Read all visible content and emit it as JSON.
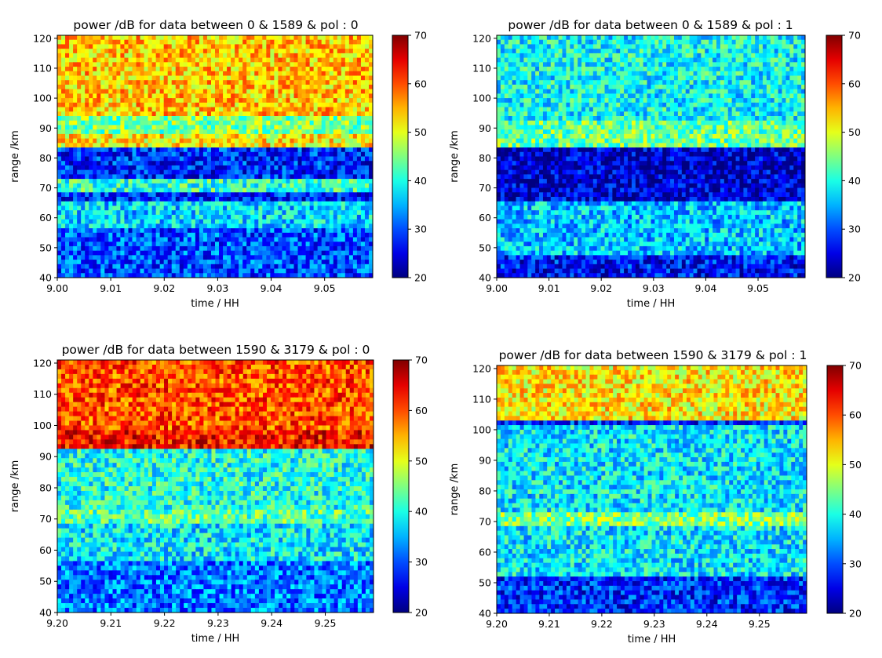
{
  "chart_data": [
    {
      "type": "heatmap",
      "title": "power /dB for data between 0 & 1589 & pol : 0",
      "xlabel": "time / HH",
      "ylabel": "range /km",
      "xlim": [
        9.0,
        9.059
      ],
      "ylim": [
        40,
        121
      ],
      "x_ticks": [
        "9.00",
        "9.01",
        "9.02",
        "9.03",
        "9.04",
        "9.05"
      ],
      "y_ticks": [
        "40",
        "50",
        "60",
        "70",
        "80",
        "90",
        "100",
        "110",
        "120"
      ],
      "colorbar": {
        "min": 20,
        "max": 70,
        "ticks": [
          "20",
          "30",
          "40",
          "50",
          "60",
          "70"
        ],
        "colormap": "jet"
      },
      "bands": [
        {
          "range_km": [
            40,
            56
          ],
          "level_db": 30
        },
        {
          "range_km": [
            56,
            66
          ],
          "level_db": 37
        },
        {
          "range_km": [
            69,
            73
          ],
          "level_db": 41
        },
        {
          "range_km": [
            74,
            82
          ],
          "level_db": 28
        },
        {
          "range_km": [
            83,
            88
          ],
          "level_db": 52
        },
        {
          "range_km": [
            88,
            94
          ],
          "level_db": 45
        },
        {
          "range_km": [
            94,
            121
          ],
          "level_db": 54
        }
      ]
    },
    {
      "type": "heatmap",
      "title": "power /dB for data between 0 & 1589 & pol : 1",
      "xlabel": "time / HH",
      "ylabel": "range /km",
      "xlim": [
        9.0,
        9.059
      ],
      "ylim": [
        40,
        121
      ],
      "x_ticks": [
        "9.00",
        "9.01",
        "9.02",
        "9.03",
        "9.04",
        "9.05"
      ],
      "y_ticks": [
        "40",
        "50",
        "60",
        "70",
        "80",
        "90",
        "100",
        "110",
        "120"
      ],
      "colorbar": {
        "min": 20,
        "max": 70,
        "ticks": [
          "20",
          "30",
          "40",
          "50",
          "60",
          "70"
        ],
        "colormap": "jet"
      },
      "bands": [
        {
          "range_km": [
            40,
            47
          ],
          "level_db": 27
        },
        {
          "range_km": [
            47,
            65
          ],
          "level_db": 36
        },
        {
          "range_km": [
            65,
            83
          ],
          "level_db": 24
        },
        {
          "range_km": [
            84,
            92
          ],
          "level_db": 44
        },
        {
          "range_km": [
            92,
            121
          ],
          "level_db": 39
        }
      ]
    },
    {
      "type": "heatmap",
      "title": "power /dB for data between 1590 & 3179 & pol : 0",
      "xlabel": "time / HH",
      "ylabel": "range /km",
      "xlim": [
        9.2,
        9.259
      ],
      "ylim": [
        40,
        121
      ],
      "x_ticks": [
        "9.20",
        "9.21",
        "9.22",
        "9.23",
        "9.24",
        "9.25"
      ],
      "y_ticks": [
        "40",
        "50",
        "60",
        "70",
        "80",
        "90",
        "100",
        "110",
        "120"
      ],
      "colorbar": {
        "min": 20,
        "max": 70,
        "ticks": [
          "20",
          "30",
          "40",
          "50",
          "60",
          "70"
        ],
        "colormap": "jet"
      },
      "bands": [
        {
          "range_km": [
            40,
            56
          ],
          "level_db": 32
        },
        {
          "range_km": [
            56,
            68
          ],
          "level_db": 38
        },
        {
          "range_km": [
            69,
            73
          ],
          "level_db": 43
        },
        {
          "range_km": [
            73,
            92
          ],
          "level_db": 40
        },
        {
          "range_km": [
            93,
            98
          ],
          "level_db": 63
        },
        {
          "range_km": [
            98,
            121
          ],
          "level_db": 60
        }
      ]
    },
    {
      "type": "heatmap",
      "title": "power /dB for data between 1590 & 3179 & pol : 1",
      "xlabel": "time / HH",
      "ylabel": "range /km",
      "xlim": [
        9.2,
        9.259
      ],
      "ylim": [
        40,
        121
      ],
      "x_ticks": [
        "9.20",
        "9.21",
        "9.22",
        "9.23",
        "9.24",
        "9.25"
      ],
      "y_ticks": [
        "40",
        "50",
        "60",
        "70",
        "80",
        "90",
        "100",
        "110",
        "120"
      ],
      "colorbar": {
        "min": 20,
        "max": 70,
        "ticks": [
          "20",
          "30",
          "40",
          "50",
          "60",
          "70"
        ],
        "colormap": "jet"
      },
      "bands": [
        {
          "range_km": [
            40,
            52
          ],
          "level_db": 28
        },
        {
          "range_km": [
            52,
            68
          ],
          "level_db": 38
        },
        {
          "range_km": [
            69,
            73
          ],
          "level_db": 45
        },
        {
          "range_km": [
            73,
            102
          ],
          "level_db": 38
        },
        {
          "range_km": [
            103,
            121
          ],
          "level_db": 52
        }
      ]
    }
  ]
}
